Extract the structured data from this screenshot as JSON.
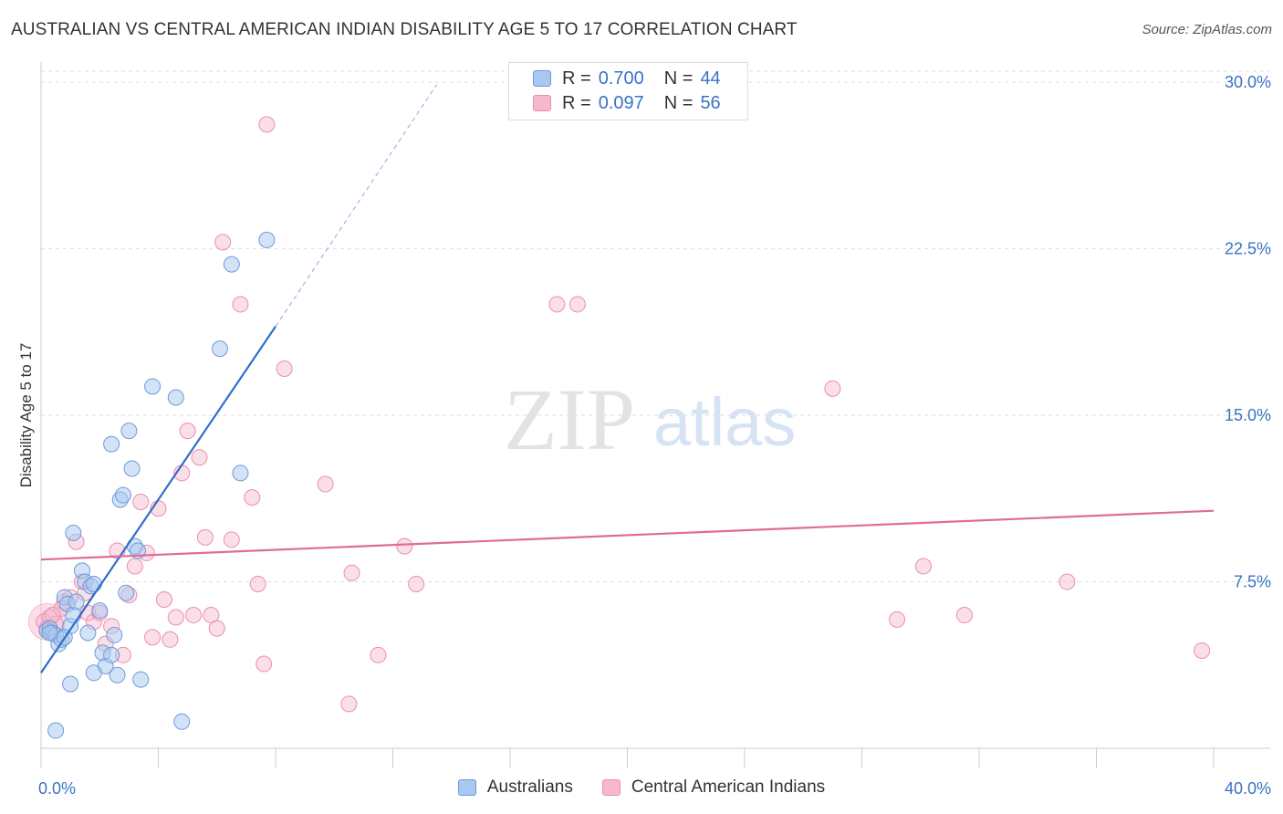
{
  "header": {
    "title": "AUSTRALIAN VS CENTRAL AMERICAN INDIAN DISABILITY AGE 5 TO 17 CORRELATION CHART",
    "source": "Source: ZipAtlas.com"
  },
  "legend_top": {
    "rows": [
      {
        "r_label": "R =",
        "r_value": "0.700",
        "n_label": "N =",
        "n_value": "44"
      },
      {
        "r_label": "R =",
        "r_value": "0.097",
        "n_label": "N =",
        "n_value": "56"
      }
    ]
  },
  "legend_bottom": {
    "items": [
      "Australians",
      "Central American Indians"
    ]
  },
  "watermark": {
    "zip": "ZIP",
    "atlas": "atlas"
  },
  "colors": {
    "blue_fill": "#a8c8f0",
    "blue_stroke": "#6f9ad8",
    "blue_line": "#2f6fc9",
    "pink_fill": "#f6b8cb",
    "pink_stroke": "#e98fac",
    "pink_line": "#e06b98",
    "tick_text": "#3a72c4",
    "grid": "#dddddd"
  },
  "chart_data": {
    "type": "scatter",
    "title": "AUSTRALIAN VS CENTRAL AMERICAN INDIAN DISABILITY AGE 5 TO 17 CORRELATION CHART",
    "xlabel": "",
    "ylabel": "Disability Age 5 to 17",
    "xlim": [
      0,
      40
    ],
    "ylim": [
      0,
      30.5
    ],
    "x_tick_labels": [
      "0.0%",
      "40.0%"
    ],
    "y_tick_labels": [
      "7.5%",
      "15.0%",
      "22.5%",
      "30.0%"
    ],
    "y_ticks": [
      7.5,
      15.0,
      22.5,
      30.0
    ],
    "grid": true,
    "legend_position": "top-center",
    "series": [
      {
        "name": "Australians",
        "r": 0.7,
        "n": 44,
        "trend": {
          "x_start": 0.0,
          "y_start": 3.4,
          "x_solid_end": 8.0,
          "y_solid_end": 19.0,
          "x_dash_end": 13.5,
          "y_dash_end": 29.9
        },
        "points": [
          [
            0.2,
            5.3
          ],
          [
            0.3,
            5.4
          ],
          [
            0.4,
            5.2
          ],
          [
            0.5,
            5.1
          ],
          [
            0.6,
            4.7
          ],
          [
            0.7,
            4.9
          ],
          [
            0.8,
            6.8
          ],
          [
            0.9,
            6.5
          ],
          [
            1.0,
            5.5
          ],
          [
            1.1,
            6.0
          ],
          [
            1.1,
            9.7
          ],
          [
            1.2,
            6.6
          ],
          [
            1.4,
            8.0
          ],
          [
            1.5,
            7.5
          ],
          [
            1.6,
            5.2
          ],
          [
            1.7,
            7.3
          ],
          [
            1.8,
            7.4
          ],
          [
            2.0,
            6.2
          ],
          [
            2.1,
            4.3
          ],
          [
            2.2,
            3.7
          ],
          [
            2.4,
            4.2
          ],
          [
            2.5,
            5.1
          ],
          [
            2.6,
            3.3
          ],
          [
            2.7,
            11.2
          ],
          [
            2.8,
            11.4
          ],
          [
            2.9,
            7.0
          ],
          [
            3.0,
            14.3
          ],
          [
            3.1,
            12.6
          ],
          [
            3.2,
            9.1
          ],
          [
            3.3,
            8.9
          ],
          [
            3.4,
            3.1
          ],
          [
            3.8,
            16.3
          ],
          [
            4.6,
            15.8
          ],
          [
            4.8,
            1.2
          ],
          [
            6.1,
            18.0
          ],
          [
            6.5,
            21.8
          ],
          [
            6.8,
            12.4
          ],
          [
            7.7,
            22.9
          ],
          [
            0.5,
            0.8
          ],
          [
            1.0,
            2.9
          ],
          [
            2.4,
            13.7
          ],
          [
            1.8,
            3.4
          ],
          [
            0.3,
            5.2
          ],
          [
            0.8,
            5.0
          ]
        ]
      },
      {
        "name": "Central American Indians",
        "r": 0.097,
        "n": 56,
        "trend": {
          "x_start": 0.0,
          "y_start": 8.5,
          "x_end": 40.0,
          "y_end": 10.7
        },
        "points": [
          [
            0.1,
            5.7
          ],
          [
            0.2,
            5.4
          ],
          [
            0.3,
            5.9
          ],
          [
            0.5,
            5.6
          ],
          [
            0.7,
            6.3
          ],
          [
            0.8,
            6.6
          ],
          [
            1.0,
            6.8
          ],
          [
            1.2,
            9.3
          ],
          [
            1.4,
            7.5
          ],
          [
            1.6,
            6.1
          ],
          [
            1.8,
            5.7
          ],
          [
            2.0,
            6.1
          ],
          [
            2.2,
            4.7
          ],
          [
            2.4,
            5.5
          ],
          [
            2.6,
            8.9
          ],
          [
            2.8,
            4.2
          ],
          [
            3.0,
            6.9
          ],
          [
            3.2,
            8.2
          ],
          [
            3.4,
            11.1
          ],
          [
            3.6,
            8.8
          ],
          [
            3.8,
            5.0
          ],
          [
            4.0,
            10.8
          ],
          [
            4.2,
            6.7
          ],
          [
            4.4,
            4.9
          ],
          [
            4.6,
            5.9
          ],
          [
            4.8,
            12.4
          ],
          [
            5.0,
            14.3
          ],
          [
            5.2,
            6.0
          ],
          [
            5.4,
            13.1
          ],
          [
            5.6,
            9.5
          ],
          [
            5.8,
            6.0
          ],
          [
            6.0,
            5.4
          ],
          [
            6.2,
            22.8
          ],
          [
            6.5,
            9.4
          ],
          [
            6.8,
            20.0
          ],
          [
            7.2,
            11.3
          ],
          [
            7.4,
            7.4
          ],
          [
            7.6,
            3.8
          ],
          [
            7.7,
            28.1
          ],
          [
            8.3,
            17.1
          ],
          [
            9.7,
            11.9
          ],
          [
            10.5,
            2.0
          ],
          [
            10.6,
            7.9
          ],
          [
            11.5,
            4.2
          ],
          [
            12.4,
            9.1
          ],
          [
            12.8,
            7.4
          ],
          [
            17.6,
            20.0
          ],
          [
            18.3,
            20.0
          ],
          [
            27.0,
            16.2
          ],
          [
            29.2,
            5.8
          ],
          [
            30.1,
            8.2
          ],
          [
            31.5,
            6.0
          ],
          [
            35.0,
            7.5
          ],
          [
            39.6,
            4.4
          ],
          [
            0.4,
            6.0
          ],
          [
            1.5,
            7.0
          ]
        ]
      }
    ]
  }
}
